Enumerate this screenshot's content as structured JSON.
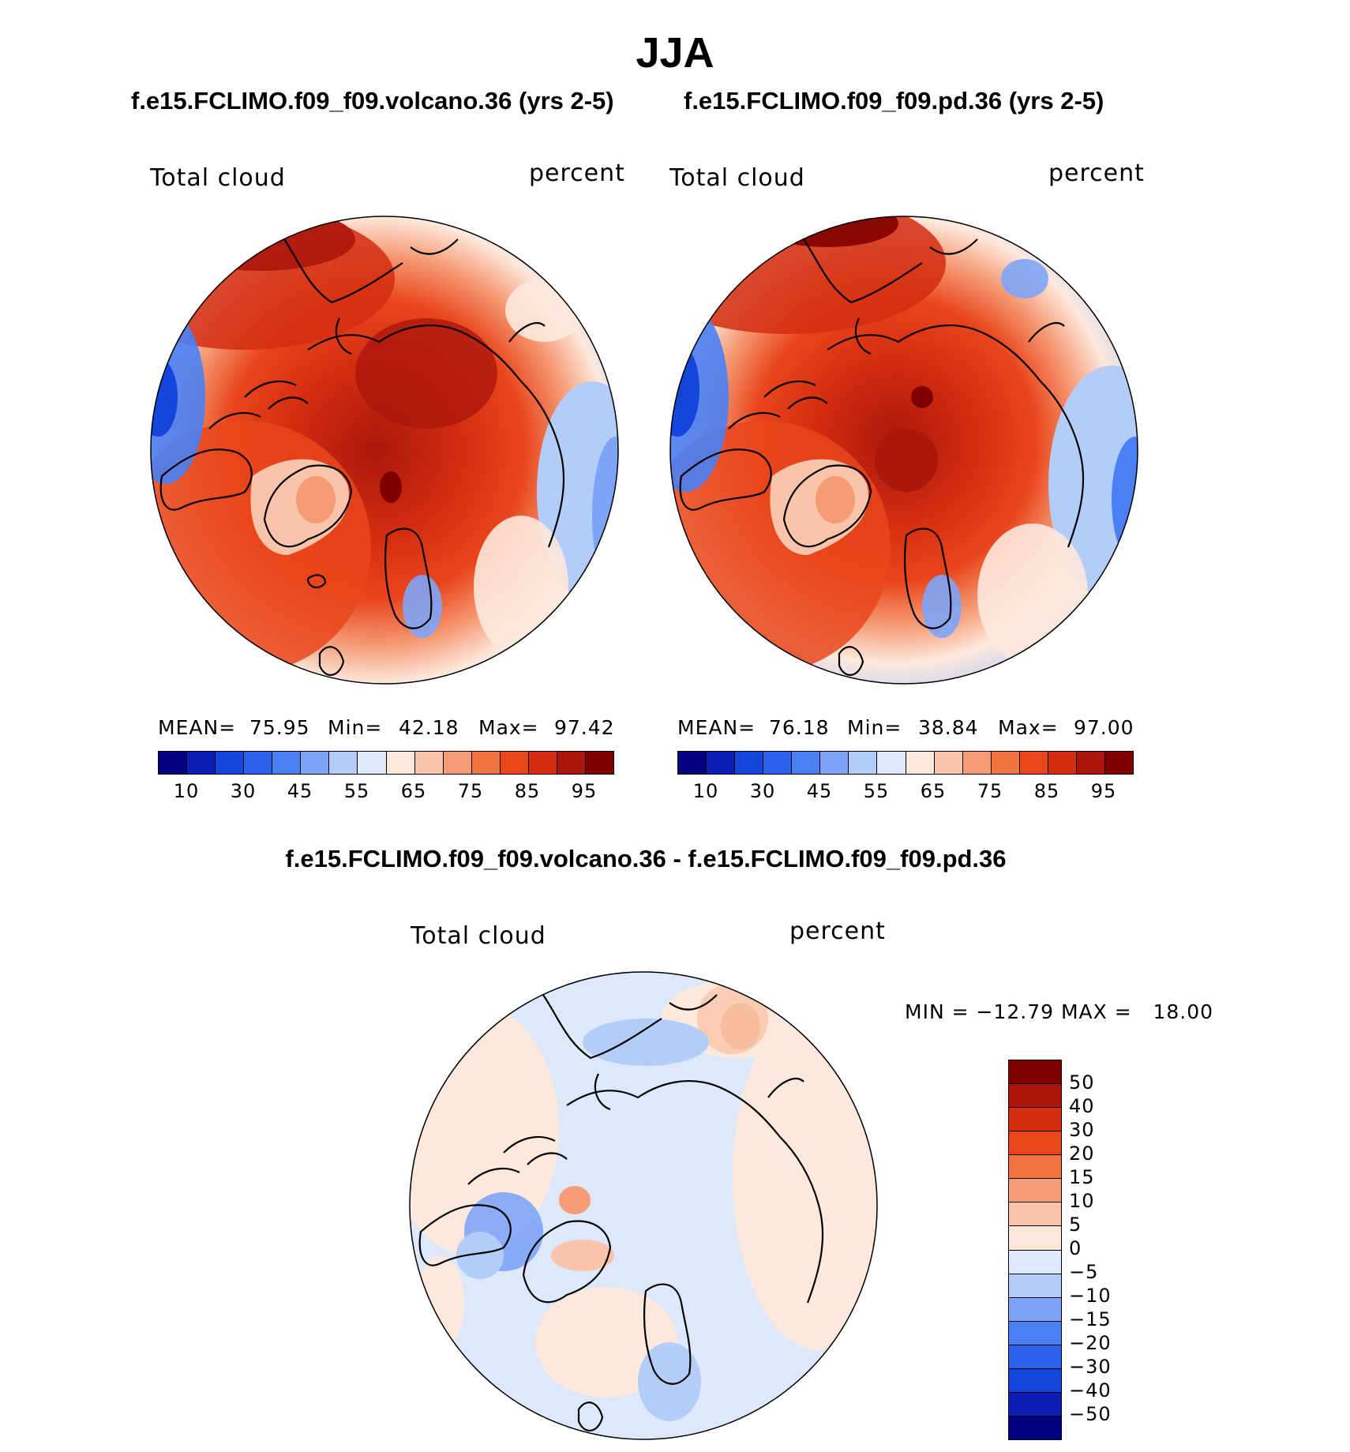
{
  "title": "JJA",
  "colors": {
    "abs_scale": [
      "#000080",
      "#0a1eb4",
      "#1446dc",
      "#2a62ee",
      "#4a80f4",
      "#7ea4f6",
      "#b4cdf8",
      "#dfe9fb",
      "#fde8dc",
      "#f9c4aa",
      "#f59b76",
      "#f2743e",
      "#e9461c",
      "#d42d10",
      "#ab170c",
      "#800000"
    ],
    "diff_scale": [
      "#000080",
      "#0a1eb4",
      "#1446dc",
      "#2a62ee",
      "#4a80f4",
      "#7ea4f6",
      "#b4cdf8",
      "#dde8fa",
      "#fde8dc",
      "#f9c4aa",
      "#f59b76",
      "#f2743e",
      "#e9461c",
      "#d42d10",
      "#ab170c",
      "#800000"
    ],
    "land_outline": "#000000"
  },
  "panels": [
    {
      "case_title": "f.e15.FCLIMO.f09_f09.volcano.36 (yrs 2-5)",
      "variable": "Total cloud",
      "units": "percent",
      "mean_label": "MEAN=",
      "mean": "75.95",
      "min_label": "Min=",
      "min": "42.18",
      "max_label": "Max=",
      "max": "97.42",
      "colorbar_labels": [
        "10",
        "30",
        "45",
        "55",
        "65",
        "75",
        "85",
        "95"
      ]
    },
    {
      "case_title": "f.e15.FCLIMO.f09_f09.pd.36 (yrs 2-5)",
      "variable": "Total cloud",
      "units": "percent",
      "mean_label": "MEAN=",
      "mean": "76.18",
      "min_label": "Min=",
      "min": "38.84",
      "max_label": "Max=",
      "max": "97.00",
      "colorbar_labels": [
        "10",
        "30",
        "45",
        "55",
        "65",
        "75",
        "85",
        "95"
      ]
    }
  ],
  "diff_panel": {
    "case_title": "f.e15.FCLIMO.f09_f09.volcano.36 - f.e15.FCLIMO.f09_f09.pd.36",
    "variable": "Total cloud",
    "units": "percent",
    "minmax_text": "MIN = −12.79 MAX =   18.00",
    "colorbar_labels": [
      "50",
      "40",
      "30",
      "20",
      "15",
      "10",
      "5",
      "0",
      "−5",
      "−10",
      "−15",
      "−20",
      "−30",
      "−40",
      "−50"
    ]
  }
}
